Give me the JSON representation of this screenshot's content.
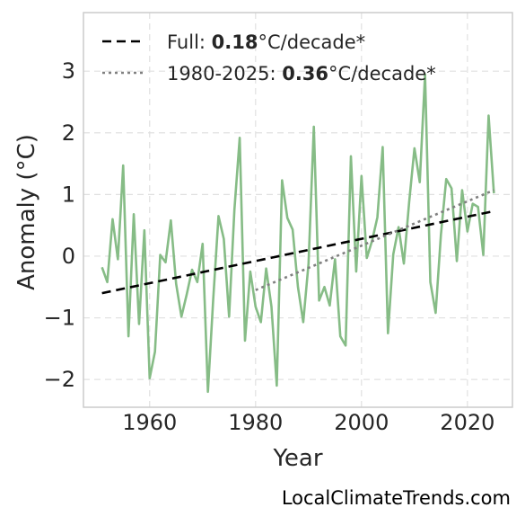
{
  "chart_data": {
    "type": "line",
    "xlabel": "Year",
    "ylabel": "Anomaly (°C)",
    "xlim": [
      1947.5,
      2028.5
    ],
    "ylim": [
      -2.45,
      3.95
    ],
    "x_ticks": [
      1960,
      1980,
      2000,
      2020
    ],
    "y_ticks": [
      -2,
      -1,
      0,
      1,
      2,
      3
    ],
    "y_tick_labels": [
      "−2",
      "−1",
      "0",
      "1",
      "2",
      "3"
    ],
    "grid": true,
    "legend_position": "top-left",
    "series": [
      {
        "name": "",
        "color": "#86bc86",
        "style": "solid",
        "x": [
          1951,
          1952,
          1953,
          1954,
          1955,
          1956,
          1957,
          1958,
          1959,
          1960,
          1961,
          1962,
          1963,
          1964,
          1965,
          1966,
          1967,
          1968,
          1969,
          1970,
          1971,
          1972,
          1973,
          1974,
          1975,
          1976,
          1977,
          1978,
          1979,
          1980,
          1981,
          1982,
          1983,
          1984,
          1985,
          1986,
          1987,
          1988,
          1989,
          1990,
          1991,
          1992,
          1993,
          1994,
          1995,
          1996,
          1997,
          1998,
          1999,
          2000,
          2001,
          2002,
          2003,
          2004,
          2005,
          2006,
          2007,
          2008,
          2009,
          2010,
          2011,
          2012,
          2013,
          2014,
          2015,
          2016,
          2017,
          2018,
          2019,
          2020,
          2021,
          2022,
          2023,
          2024,
          2025
        ],
        "values": [
          -0.18,
          -0.42,
          0.6,
          -0.05,
          1.47,
          -1.3,
          0.68,
          -1.1,
          0.42,
          -1.98,
          -1.55,
          0.02,
          -0.1,
          0.58,
          -0.45,
          -0.98,
          -0.62,
          -0.22,
          -0.42,
          0.2,
          -2.2,
          -0.7,
          0.65,
          0.28,
          -0.98,
          0.75,
          1.92,
          -1.37,
          -0.25,
          -0.82,
          -1.07,
          -0.2,
          -0.82,
          -2.1,
          1.23,
          0.62,
          0.43,
          -0.5,
          -1.07,
          -0.12,
          2.1,
          -0.72,
          -0.5,
          -0.8,
          -0.05,
          -1.3,
          -1.45,
          1.62,
          -0.25,
          1.3,
          -0.03,
          0.25,
          0.63,
          1.77,
          -1.25,
          0.03,
          0.47,
          -0.12,
          0.88,
          1.75,
          1.2,
          2.95,
          -0.42,
          -0.92,
          0.35,
          1.25,
          1.1,
          -0.08,
          1.07,
          0.4,
          0.85,
          0.8,
          0.02,
          2.28,
          1.02
        ]
      },
      {
        "name": "Full",
        "color": "#000000",
        "style": "dashed",
        "x": [
          1951,
          2025
        ],
        "values": [
          -0.6,
          0.73
        ]
      },
      {
        "name": "1980-2025",
        "color": "#808080",
        "style": "dotted",
        "x": [
          1980,
          2025
        ],
        "values": [
          -0.55,
          1.07
        ]
      }
    ],
    "legend": [
      {
        "prefix": "Full: ",
        "value": "0.18",
        "suffix": "°C/decade*",
        "color": "#000000",
        "style": "dashed"
      },
      {
        "prefix": "1980-2025: ",
        "value": "0.36",
        "suffix": "°C/decade*",
        "color": "#808080",
        "style": "dotted"
      }
    ]
  },
  "watermark": "LocalClimateTrends.com"
}
